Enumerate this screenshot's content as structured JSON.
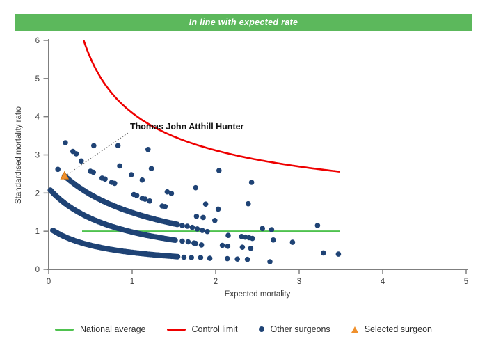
{
  "banner": {
    "text": "In line with expected rate",
    "bg_color": "#5cb85c",
    "text_color": "#ffffff"
  },
  "colors": {
    "surgeon_dot": "#1f4375",
    "axis": "#7f7f7f",
    "leader_line": "#666666"
  },
  "chart_data": {
    "type": "scatter",
    "title": "",
    "xlabel": "Expected mortality",
    "ylabel": "Standardised mortality ratio",
    "xlim": [
      0,
      5
    ],
    "ylim": [
      0,
      6
    ],
    "x_ticks": [
      "0",
      "1",
      "2",
      "3",
      "4",
      "5"
    ],
    "y_ticks": [
      "0",
      "1",
      "2",
      "3",
      "4",
      "5",
      "6"
    ],
    "grid": "off",
    "legend_position": "bottom",
    "national_average": {
      "y": 1,
      "x_start": 0.4,
      "x_end": 3.49,
      "color": "#4fc24f"
    },
    "control_limit": {
      "formula": "y = 1 + 3.1 / x^0.55",
      "offset": 1,
      "coef": 3.1,
      "power": 0.55,
      "x_start": 0.42,
      "x_end": 3.49,
      "y_max": 6,
      "color": "#ee0000"
    },
    "surgeon_bands": [
      {
        "name": "upper-dense-band",
        "k": 3.07,
        "a": 1.065,
        "x_start": 0.19,
        "x_end": 1.55,
        "step": 0.018
      },
      {
        "name": "middle-dense-band",
        "k": 1.81,
        "a": 0.852,
        "x_start": 0.02,
        "x_end": 1.52,
        "step": 0.018
      },
      {
        "name": "lower-dense-band",
        "k": 0.74,
        "a": 0.674,
        "x_start": 0.05,
        "x_end": 1.55,
        "step": 0.018
      }
    ],
    "scatter_points": [
      [
        0.2,
        3.32
      ],
      [
        0.29,
        3.09
      ],
      [
        0.33,
        3.03
      ],
      [
        0.39,
        2.84
      ],
      [
        0.11,
        2.62
      ],
      [
        0.54,
        3.24
      ],
      [
        0.83,
        3.24
      ],
      [
        0.85,
        2.71
      ],
      [
        0.99,
        2.48
      ],
      [
        1.12,
        2.34
      ],
      [
        1.19,
        3.14
      ],
      [
        1.23,
        2.64
      ],
      [
        1.42,
        2.03
      ],
      [
        1.47,
        1.99
      ],
      [
        1.76,
        2.14
      ],
      [
        2.04,
        2.59
      ],
      [
        2.43,
        2.28
      ],
      [
        0.5,
        2.57
      ],
      [
        0.535,
        2.545
      ],
      [
        0.64,
        2.39
      ],
      [
        0.675,
        2.365
      ],
      [
        0.755,
        2.28
      ],
      [
        0.79,
        2.255
      ],
      [
        1.02,
        1.96
      ],
      [
        1.055,
        1.935
      ],
      [
        1.12,
        1.86
      ],
      [
        1.155,
        1.84
      ],
      [
        1.21,
        1.79
      ],
      [
        1.36,
        1.66
      ],
      [
        1.395,
        1.645
      ],
      [
        1.6,
        1.15
      ],
      [
        1.66,
        1.13
      ],
      [
        1.72,
        1.1
      ],
      [
        1.78,
        1.06
      ],
      [
        1.84,
        1.02
      ],
      [
        1.9,
        0.99
      ],
      [
        1.6,
        0.74
      ],
      [
        1.67,
        0.72
      ],
      [
        1.74,
        0.69
      ],
      [
        1.76,
        0.68
      ],
      [
        1.83,
        0.64
      ],
      [
        1.62,
        0.32
      ],
      [
        1.71,
        0.31
      ],
      [
        1.82,
        0.31
      ],
      [
        1.93,
        0.29
      ],
      [
        1.88,
        1.71
      ],
      [
        2.03,
        1.58
      ],
      [
        2.39,
        1.72
      ],
      [
        1.77,
        1.39
      ],
      [
        1.85,
        1.36
      ],
      [
        1.99,
        1.28
      ],
      [
        2.56,
        1.07
      ],
      [
        2.67,
        1.04
      ],
      [
        3.22,
        1.15
      ],
      [
        2.15,
        0.89
      ],
      [
        2.31,
        0.86
      ],
      [
        2.355,
        0.845
      ],
      [
        2.4,
        0.83
      ],
      [
        2.44,
        0.81
      ],
      [
        2.69,
        0.77
      ],
      [
        2.92,
        0.71
      ],
      [
        2.08,
        0.63
      ],
      [
        2.145,
        0.605
      ],
      [
        2.32,
        0.58
      ],
      [
        2.42,
        0.55
      ],
      [
        3.29,
        0.43
      ],
      [
        3.47,
        0.4
      ],
      [
        2.14,
        0.28
      ],
      [
        2.26,
        0.27
      ],
      [
        2.38,
        0.26
      ],
      [
        2.65,
        0.2
      ]
    ],
    "selected_surgeon": {
      "name": "Thomas John Atthill Hunter",
      "x": 0.19,
      "y": 2.45,
      "color": "#f0912d",
      "stroke": "#d9790f",
      "label_x": 0.975,
      "label_y": 3.666,
      "leader": [
        [
          0.22,
          2.48
        ],
        [
          0.955,
          3.58
        ]
      ]
    }
  },
  "legend": [
    {
      "label": "National average",
      "marker": "line",
      "color": "#4fc24f"
    },
    {
      "label": "Control limit",
      "marker": "line",
      "color": "#ee0000"
    },
    {
      "label": "Other surgeons",
      "marker": "dot",
      "color": "#1f4375"
    },
    {
      "label": "Selected surgeon",
      "marker": "triangle",
      "color": "#f0912d"
    }
  ]
}
